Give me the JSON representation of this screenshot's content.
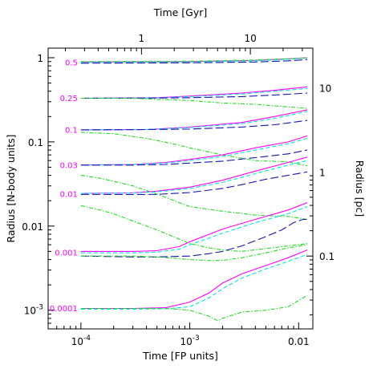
{
  "chart_data": {
    "type": "line",
    "xlabel": "Time [FP units]",
    "ylabel": "Radius [N-body units]",
    "top_xlabel": "Time [Gyr]",
    "right_ylabel": "Radius [pc]",
    "xscale": "log",
    "yscale": "log",
    "xlim": [
      5e-05,
      0.0135
    ],
    "ylim": [
      0.0006,
      1.3
    ],
    "x_ticks": [
      {
        "value": 0.0001,
        "label": "10",
        "exp": "-4"
      },
      {
        "value": 0.001,
        "label": "10",
        "exp": "-3"
      },
      {
        "value": 0.01,
        "label": "0.01",
        "exp": ""
      }
    ],
    "y_ticks": [
      {
        "value": 0.001,
        "label": "10",
        "exp": "-3"
      },
      {
        "value": 0.01,
        "label": "0.01",
        "exp": ""
      },
      {
        "value": 0.1,
        "label": "0.1",
        "exp": ""
      },
      {
        "value": 1,
        "label": "1",
        "exp": ""
      }
    ],
    "top_ticks": [
      {
        "value": 0.00036,
        "label": "1"
      },
      {
        "value": 0.0036,
        "label": "10"
      }
    ],
    "right_ticks": [
      {
        "value": 0.0044,
        "label": "0.1"
      },
      {
        "value": 0.044,
        "label": "1"
      },
      {
        "value": 0.44,
        "label": "10"
      }
    ],
    "level_labels": [
      {
        "text": "0.5",
        "y": 0.88,
        "x": 0.0001
      },
      {
        "text": "0.25",
        "y": 0.33,
        "x": 0.0001
      },
      {
        "text": "0.1",
        "y": 0.139,
        "x": 0.0001
      },
      {
        "text": "0.03",
        "y": 0.053,
        "x": 0.0001
      },
      {
        "text": "0.01",
        "y": 0.024,
        "x": 0.0001
      },
      {
        "text": "0.001",
        "y": 0.0048,
        "x": 0.0001
      },
      {
        "text": "0.0001",
        "y": 0.00105,
        "x": 0.0001
      }
    ],
    "colors": {
      "magenta": "#ff00ff",
      "cyan": "#00e5e5",
      "blue": "#1414b4",
      "green": "#22dd22",
      "label": "#ff00ff"
    },
    "series": [
      {
        "color": "magenta",
        "dash": "solid",
        "x": [
          0.0001,
          0.001,
          0.004,
          0.008,
          0.012
        ],
        "y": [
          0.89,
          0.9,
          0.93,
          0.97,
          1.0
        ]
      },
      {
        "color": "cyan",
        "dash": "dashed",
        "x": [
          0.0001,
          0.001,
          0.004,
          0.008,
          0.012
        ],
        "y": [
          0.88,
          0.89,
          0.92,
          0.96,
          0.99
        ]
      },
      {
        "color": "blue",
        "dash": "longdash",
        "x": [
          0.0001,
          0.001,
          0.004,
          0.008,
          0.012
        ],
        "y": [
          0.86,
          0.87,
          0.89,
          0.92,
          0.95
        ]
      },
      {
        "color": "green",
        "dash": "dotdash",
        "x": [
          0.0001,
          0.001,
          0.004,
          0.008,
          0.012
        ],
        "y": [
          0.9,
          0.91,
          0.94,
          0.97,
          1.0
        ]
      },
      {
        "color": "magenta",
        "dash": "solid",
        "x": [
          0.0001,
          0.0005,
          0.001,
          0.003,
          0.006,
          0.012
        ],
        "y": [
          0.33,
          0.335,
          0.35,
          0.38,
          0.41,
          0.45
        ]
      },
      {
        "color": "cyan",
        "dash": "dashed",
        "x": [
          0.0001,
          0.0005,
          0.001,
          0.003,
          0.006,
          0.012
        ],
        "y": [
          0.33,
          0.333,
          0.345,
          0.37,
          0.4,
          0.43
        ]
      },
      {
        "color": "blue",
        "dash": "longdash",
        "x": [
          0.0001,
          0.0005,
          0.001,
          0.003,
          0.006,
          0.012
        ],
        "y": [
          0.33,
          0.332,
          0.335,
          0.345,
          0.36,
          0.38
        ]
      },
      {
        "color": "green",
        "dash": "dotdash",
        "x": [
          0.0001,
          0.0003,
          0.0005,
          0.001,
          0.002,
          0.004,
          0.008,
          0.012
        ],
        "y": [
          0.33,
          0.33,
          0.32,
          0.31,
          0.29,
          0.28,
          0.26,
          0.25
        ]
      },
      {
        "color": "magenta",
        "dash": "solid",
        "x": [
          0.0001,
          0.0004,
          0.001,
          0.003,
          0.006,
          0.012
        ],
        "y": [
          0.139,
          0.14,
          0.15,
          0.17,
          0.2,
          0.24
        ]
      },
      {
        "color": "cyan",
        "dash": "dashed",
        "x": [
          0.0001,
          0.0004,
          0.001,
          0.003,
          0.006,
          0.012
        ],
        "y": [
          0.139,
          0.14,
          0.148,
          0.165,
          0.19,
          0.23
        ]
      },
      {
        "color": "blue",
        "dash": "longdash",
        "x": [
          0.0001,
          0.0004,
          0.001,
          0.003,
          0.006,
          0.012
        ],
        "y": [
          0.139,
          0.14,
          0.142,
          0.15,
          0.16,
          0.18
        ]
      },
      {
        "color": "green",
        "dash": "dotdash",
        "x": [
          0.0001,
          0.0002,
          0.0004,
          0.0007,
          0.001,
          0.002,
          0.004,
          0.008,
          0.012
        ],
        "y": [
          0.13,
          0.125,
          0.11,
          0.095,
          0.085,
          0.07,
          0.06,
          0.058,
          0.052
        ]
      },
      {
        "color": "magenta",
        "dash": "solid",
        "x": [
          0.0001,
          0.0003,
          0.0006,
          0.001,
          0.002,
          0.004,
          0.008,
          0.012
        ],
        "y": [
          0.053,
          0.054,
          0.057,
          0.062,
          0.07,
          0.085,
          0.1,
          0.118
        ]
      },
      {
        "color": "cyan",
        "dash": "dashed",
        "x": [
          0.0001,
          0.0003,
          0.0006,
          0.001,
          0.002,
          0.004,
          0.008,
          0.012
        ],
        "y": [
          0.053,
          0.054,
          0.056,
          0.06,
          0.067,
          0.08,
          0.095,
          0.11
        ]
      },
      {
        "color": "blue",
        "dash": "longdash",
        "x": [
          0.0001,
          0.0003,
          0.0006,
          0.001,
          0.002,
          0.004,
          0.008,
          0.012
        ],
        "y": [
          0.053,
          0.053,
          0.054,
          0.056,
          0.059,
          0.065,
          0.072,
          0.08
        ]
      },
      {
        "color": "green",
        "dash": "dotdash",
        "x": [
          0.0001,
          0.00015,
          0.0002,
          0.0003,
          0.0005,
          0.0008,
          0.001,
          0.002,
          0.004,
          0.008,
          0.012
        ],
        "y": [
          0.04,
          0.037,
          0.034,
          0.03,
          0.024,
          0.019,
          0.017,
          0.015,
          0.0135,
          0.013,
          0.012
        ]
      },
      {
        "color": "magenta",
        "dash": "solid",
        "x": [
          0.0001,
          0.0003,
          0.0005,
          0.001,
          0.002,
          0.004,
          0.008,
          0.012
        ],
        "y": [
          0.0245,
          0.0248,
          0.026,
          0.029,
          0.035,
          0.045,
          0.057,
          0.066
        ]
      },
      {
        "color": "cyan",
        "dash": "dashed",
        "x": [
          0.0001,
          0.0003,
          0.0005,
          0.001,
          0.002,
          0.004,
          0.008,
          0.012
        ],
        "y": [
          0.0245,
          0.0247,
          0.0255,
          0.028,
          0.033,
          0.042,
          0.053,
          0.06
        ]
      },
      {
        "color": "blue",
        "dash": "longdash",
        "x": [
          0.0001,
          0.0003,
          0.0005,
          0.001,
          0.002,
          0.003,
          0.005,
          0.008,
          0.012
        ],
        "y": [
          0.0238,
          0.0237,
          0.0238,
          0.025,
          0.028,
          0.031,
          0.036,
          0.04,
          0.044
        ]
      },
      {
        "color": "green",
        "dash": "dotdash",
        "x": [
          0.0001,
          0.00015,
          0.0002,
          0.0003,
          0.0005,
          0.0008,
          0.001,
          0.0015,
          0.002,
          0.003,
          0.005,
          0.008,
          0.012
        ],
        "y": [
          0.0175,
          0.0155,
          0.014,
          0.0115,
          0.009,
          0.007,
          0.0062,
          0.0055,
          0.0052,
          0.005,
          0.0054,
          0.0058,
          0.0062
        ]
      },
      {
        "color": "magenta",
        "dash": "solid",
        "x": [
          0.0001,
          0.0003,
          0.0005,
          0.0008,
          0.001,
          0.002,
          0.004,
          0.008,
          0.012
        ],
        "y": [
          0.005,
          0.005,
          0.0051,
          0.0057,
          0.0065,
          0.0092,
          0.012,
          0.0155,
          0.019
        ]
      },
      {
        "color": "cyan",
        "dash": "dashed",
        "x": [
          0.0001,
          0.0003,
          0.0005,
          0.0008,
          0.001,
          0.002,
          0.004,
          0.008,
          0.012
        ],
        "y": [
          0.0048,
          0.0048,
          0.0049,
          0.0053,
          0.006,
          0.0082,
          0.011,
          0.014,
          0.017
        ]
      },
      {
        "color": "blue",
        "dash": "longdash",
        "x": [
          0.0001,
          0.0003,
          0.0005,
          0.001,
          0.0015,
          0.002,
          0.003,
          0.005,
          0.007,
          0.009,
          0.011,
          0.012
        ],
        "y": [
          0.0044,
          0.0043,
          0.0043,
          0.0044,
          0.0047,
          0.005,
          0.0058,
          0.0075,
          0.009,
          0.011,
          0.012,
          0.012
        ]
      },
      {
        "color": "green",
        "dash": "dotdash",
        "x": [
          0.0001,
          0.0003,
          0.0005,
          0.0008,
          0.001,
          0.0015,
          0.002,
          0.003,
          0.005,
          0.008,
          0.012
        ],
        "y": [
          0.0044,
          0.0044,
          0.0043,
          0.0041,
          0.004,
          0.0039,
          0.0039,
          0.0042,
          0.0048,
          0.0055,
          0.006
        ]
      },
      {
        "color": "magenta",
        "dash": "solid",
        "x": [
          0.0001,
          0.0003,
          0.0006,
          0.001,
          0.0015,
          0.002,
          0.003,
          0.005,
          0.008,
          0.012
        ],
        "y": [
          0.00105,
          0.00105,
          0.00107,
          0.00125,
          0.0016,
          0.0021,
          0.0027,
          0.0034,
          0.0042,
          0.0052
        ]
      },
      {
        "color": "cyan",
        "dash": "dashed",
        "x": [
          0.0001,
          0.0003,
          0.0006,
          0.001,
          0.0015,
          0.002,
          0.003,
          0.005,
          0.008,
          0.012
        ],
        "y": [
          0.00103,
          0.00103,
          0.00104,
          0.0011,
          0.0014,
          0.0018,
          0.0024,
          0.0031,
          0.0038,
          0.0046
        ]
      },
      {
        "color": "green",
        "dash": "dotdash",
        "x": [
          0.0001,
          0.0003,
          0.0006,
          0.001,
          0.0015,
          0.0018,
          0.002,
          0.003,
          0.005,
          0.008,
          0.012
        ],
        "y": [
          0.00105,
          0.00105,
          0.00105,
          0.001,
          0.00085,
          0.00075,
          0.0008,
          0.00095,
          0.001,
          0.0011,
          0.0015
        ]
      }
    ]
  }
}
